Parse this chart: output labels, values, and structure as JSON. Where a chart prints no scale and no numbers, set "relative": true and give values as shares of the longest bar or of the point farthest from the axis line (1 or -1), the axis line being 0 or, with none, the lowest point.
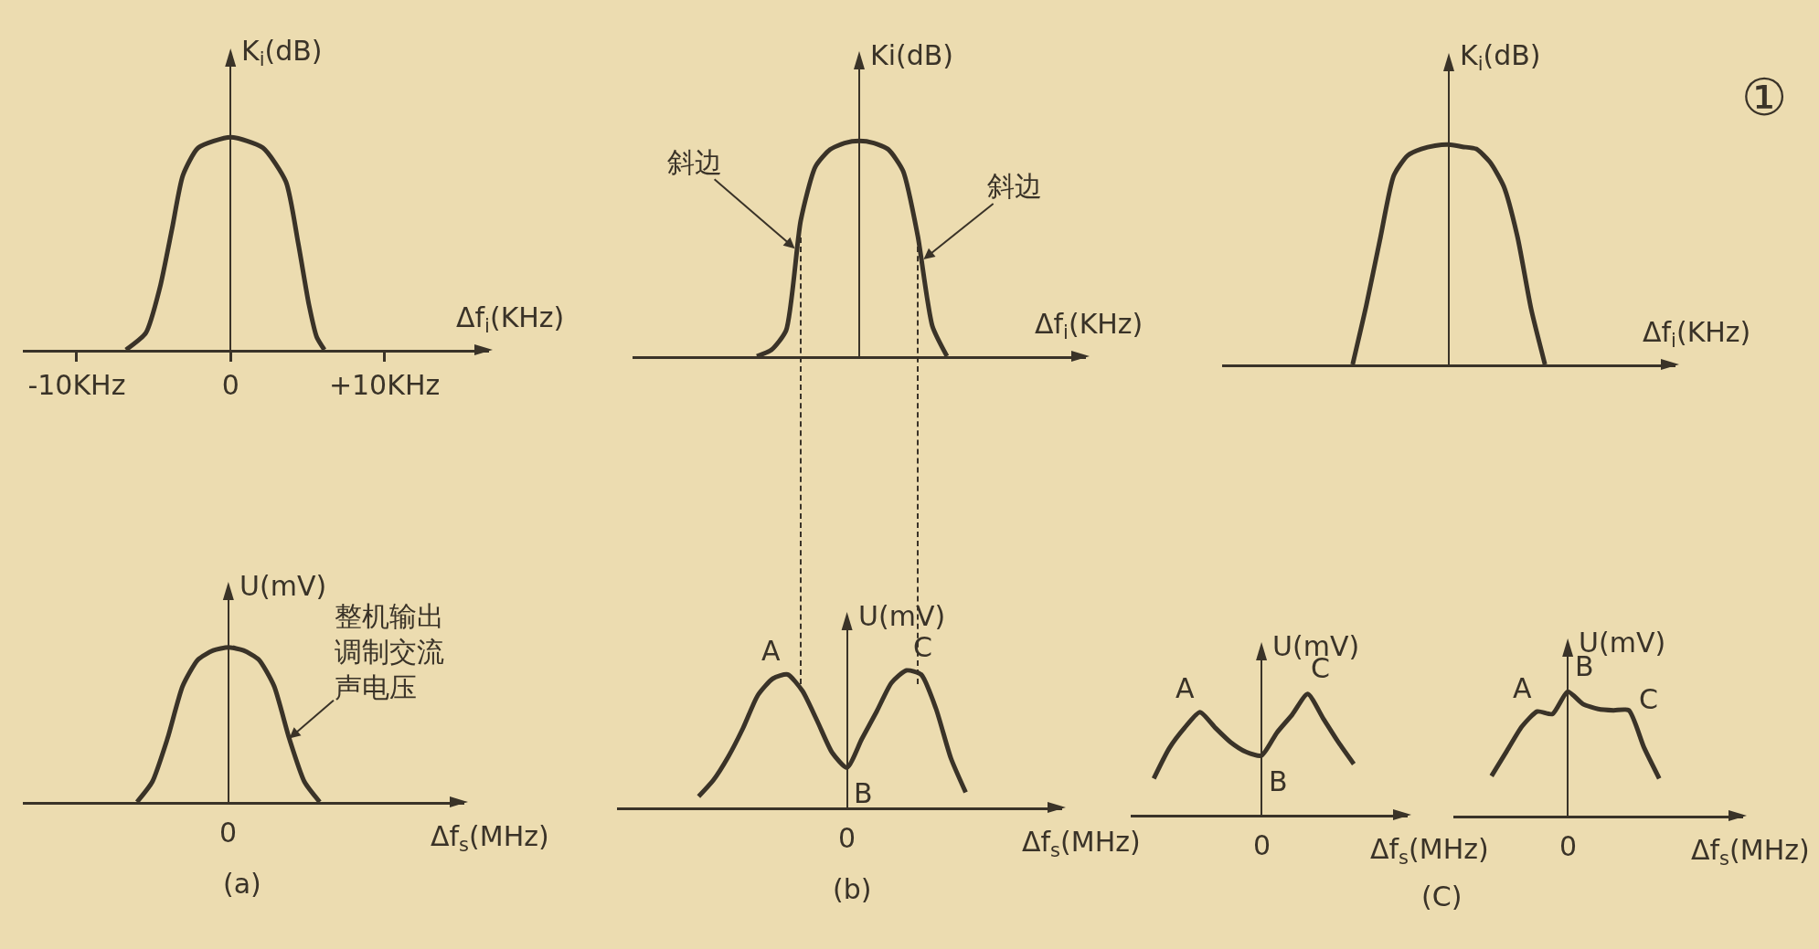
{
  "chart_data": [
    {
      "type": "line",
      "relative": true,
      "ylabel": "K$_{i}$(dB)",
      "xlabel": "Δf$_{i}$(KHz)",
      "xlim": [
        -13.5,
        16.8
      ],
      "xticks": [
        {
          "value": -10,
          "label": "-10KHz"
        },
        0,
        {
          "value": 10,
          "label": "+10KHz"
        }
      ],
      "x": [
        -6.8,
        -5.5,
        -4.6,
        -3.8,
        -3.1,
        -2.1,
        0,
        2.1,
        3.6,
        4.4,
        5.1,
        5.6,
        6.1
      ],
      "series": [
        {
          "color": "#3a3328",
          "values": [
            0,
            0.08,
            0.29,
            0.57,
            0.82,
            0.95,
            1,
            0.95,
            0.79,
            0.5,
            0.21,
            0.06,
            0
          ]
        }
      ]
    },
    {
      "type": "line",
      "relative": true,
      "ylabel": "Ki(dB)",
      "xlabel": "Δf$_{i}$(KHz)",
      "categories": [
        null,
        null,
        null,
        null,
        null,
        null,
        null,
        null,
        null,
        null,
        null,
        null,
        null,
        null,
        null,
        null,
        null,
        null,
        null,
        null,
        null,
        null,
        null,
        null,
        null,
        null,
        null,
        null,
        null,
        null,
        null
      ],
      "series": [
        {
          "color": "#3a3328",
          "values": [
            null,
            null,
            null,
            null,
            null,
            null,
            null,
            null,
            0,
            0.03,
            0.12,
            0.63,
            0.88,
            0.96,
            0.99,
            1,
            0.99,
            0.96,
            0.86,
            0.56,
            0.14,
            0,
            null,
            null,
            null,
            null,
            null,
            null,
            null,
            null,
            null
          ]
        }
      ],
      "annotations": [
        "斜边",
        "斜边"
      ]
    },
    {
      "type": "line",
      "relative": true,
      "annotations": [
        "①"
      ],
      "ylabel": "K$_{i}$(dB)",
      "xlabel": "Δf$_{i}$(KHz)",
      "categories": [
        null,
        null,
        null,
        null,
        null,
        null,
        null,
        null,
        null,
        null,
        null,
        null,
        null,
        null,
        null,
        null,
        null,
        null,
        null,
        null,
        null,
        null,
        null,
        null,
        null,
        null,
        null,
        null,
        null,
        null,
        null,
        null,
        null
      ],
      "series": [
        {
          "color": "#3a3328",
          "values": [
            null,
            null,
            null,
            null,
            null,
            null,
            null,
            null,
            null,
            0,
            0.27,
            0.57,
            0.86,
            0.95,
            0.98,
            0.995,
            1,
            0.99,
            0.98,
            0.92,
            0.81,
            0.58,
            0.25,
            0,
            null,
            null,
            null,
            null,
            null,
            null,
            null,
            null,
            null
          ]
        }
      ]
    },
    {
      "type": "line",
      "relative": true,
      "ylabel": "U(mV)",
      "xlabel": "Δf$_{s}$(MHz)",
      "categories": [
        null,
        null,
        null,
        null,
        null,
        null,
        null,
        null,
        null,
        null,
        null,
        null,
        null,
        null,
        null,
        null,
        null,
        null,
        null,
        null,
        null,
        null,
        null,
        null,
        null,
        null,
        null,
        null,
        null
      ],
      "series": [
        {
          "color": "#3a3328",
          "values": [
            null,
            null,
            null,
            null,
            null,
            null,
            null,
            0,
            0.13,
            0.41,
            0.75,
            0.92,
            0.98,
            1,
            0.98,
            0.92,
            0.75,
            0.41,
            0.13,
            0,
            null,
            null,
            null,
            null,
            null,
            null,
            null,
            null,
            null
          ]
        }
      ],
      "annotations": [
        "整机输出调制交流声电压",
        "0",
        "(a)"
      ]
    },
    {
      "type": "line",
      "relative": true,
      "ylabel": "U(mV)",
      "xlabel": "Δf$_{s}$(MHz)",
      "categories": [
        null,
        null,
        null,
        null,
        null,
        null,
        null,
        null,
        null,
        null,
        null,
        null,
        null,
        null,
        null,
        null,
        null,
        null,
        null,
        null,
        null,
        null,
        null,
        null,
        null,
        null,
        null,
        null,
        null,
        null
      ],
      "series": [
        {
          "color": "#3a3328",
          "values": [
            null,
            null,
            null,
            null,
            null,
            0.08,
            0.2,
            0.37,
            0.58,
            0.82,
            0.94,
            0.97,
            0.85,
            0.63,
            0.4,
            0.29,
            0.5,
            0.7,
            0.91,
            1,
            0.97,
            0.72,
            0.36,
            0.11,
            null,
            null,
            null,
            null,
            null,
            null
          ]
        }
      ],
      "annotations": [
        "A",
        "B",
        "C",
        "0",
        "(b)"
      ]
    },
    {
      "type": "line",
      "relative": true,
      "ylabel": "U(mV)",
      "xlabel": "Δf$_{s}$(MHz)",
      "categories": [
        null,
        null,
        null,
        null,
        null,
        null,
        null,
        null,
        null,
        null,
        null,
        null,
        null,
        null,
        null,
        null,
        null,
        null
      ],
      "series": [
        {
          "color": "#3a3328",
          "values": [
            null,
            0.3,
            0.55,
            0.72,
            0.85,
            0.72,
            0.6,
            0.52,
            0.49,
            0.68,
            0.83,
            1,
            0.8,
            0.6,
            0.42,
            null,
            null,
            null
          ]
        }
      ],
      "annotations": [
        "A",
        "B",
        "C",
        "0",
        "(C)"
      ]
    },
    {
      "type": "line",
      "relative": true,
      "ylabel": "U(mV)",
      "xlabel": "Δf$_{s}$(MHz)",
      "categories": [
        null,
        null,
        null,
        null,
        null,
        null,
        null,
        null,
        null,
        null,
        null,
        null,
        null,
        null,
        null,
        null,
        null,
        null,
        null
      ],
      "series": [
        {
          "color": "#3a3328",
          "values": [
            null,
            null,
            0.32,
            0.52,
            0.72,
            0.84,
            0.82,
            1,
            0.9,
            0.86,
            0.85,
            0.85,
            0.55,
            0.3,
            null,
            null,
            null,
            null,
            null
          ]
        }
      ],
      "annotations": [
        "A",
        "B",
        "C",
        "0"
      ]
    }
  ]
}
